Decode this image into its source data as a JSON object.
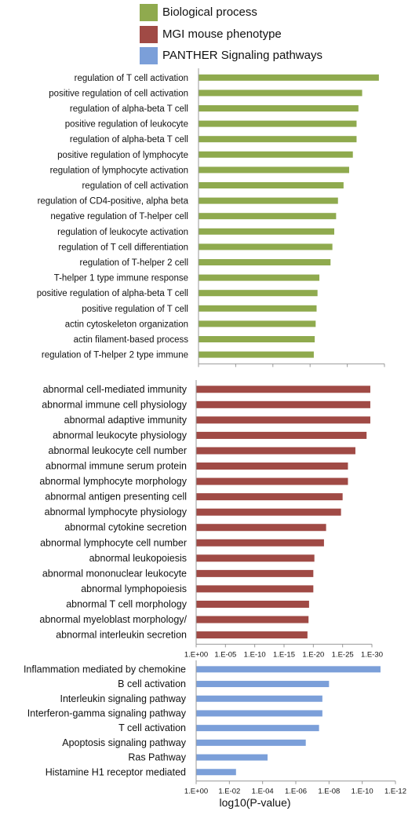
{
  "legend": [
    {
      "label": "Biological process",
      "color": "#8faa4e"
    },
    {
      "label": "MGI mouse phenotype",
      "color": "#a04a45"
    },
    {
      "label": "PANTHER Signaling pathways",
      "color": "#7b9fd9"
    }
  ],
  "xlabel": "log10(P-value)",
  "chart_data": [
    {
      "type": "bar",
      "orientation": "horizontal",
      "series": [
        {
          "name": "Biological process",
          "color": "#8faa4e"
        }
      ],
      "categories": [
        "regulation of T cell activation",
        "positive regulation of cell activation",
        "regulation of alpha-beta T cell",
        "positive regulation of leukocyte",
        "regulation of alpha-beta T cell",
        "positive regulation of lymphocyte",
        "regulation of lymphocyte activation",
        "regulation of cell activation",
        "regulation of CD4-positive, alpha beta",
        "negative regulation of T-helper cell",
        "regulation of leukocyte activation",
        "regulation of T cell differentiation",
        "regulation of T-helper 2 cell",
        "T-helper 1 type immune response",
        "positive regulation of alpha-beta T cell",
        "positive regulation of T cell",
        "actin cytoskeleton organization",
        "actin filament-based process",
        "regulation of T-helper 2 type immune"
      ],
      "values": [
        9.7,
        8.8,
        8.6,
        8.5,
        8.5,
        8.3,
        8.1,
        7.8,
        7.5,
        7.4,
        7.3,
        7.2,
        7.1,
        6.5,
        6.4,
        6.35,
        6.3,
        6.25,
        6.2
      ],
      "xlim": [
        0,
        10
      ],
      "xticks": [
        "1.E+00",
        "1.E-02",
        "1.E-04",
        "1.E-06",
        "1.E-08",
        "1.E-10"
      ],
      "xscale": "log (reversed, -log10 P)"
    },
    {
      "type": "bar",
      "orientation": "horizontal",
      "series": [
        {
          "name": "MGI mouse phenotype",
          "color": "#a04a45"
        }
      ],
      "categories": [
        "abnormal cell-mediated immunity",
        "abnormal immune cell physiology",
        "abnormal adaptive immunity",
        "abnormal leukocyte physiology",
        "abnormal leukocyte cell number",
        "abnormal immune serum protein",
        "abnormal lymphocyte morphology",
        "abnormal antigen presenting cell",
        "abnormal lymphocyte physiology",
        "abnormal cytokine secretion",
        "abnormal lymphocyte cell number",
        "abnormal leukopoiesis",
        "abnormal mononuclear leukocyte",
        "abnormal lymphopoiesis",
        "abnormal T cell morphology",
        "abnormal myeloblast morphology/",
        "abnormal interleukin secretion"
      ],
      "values": [
        32.7,
        32.7,
        32.7,
        32.0,
        29.9,
        28.5,
        28.5,
        27.5,
        27.2,
        24.4,
        24.0,
        22.2,
        22.0,
        22.0,
        21.2,
        21.1,
        20.9
      ],
      "xlim": [
        0,
        33
      ],
      "xticks": [
        "1.E+00",
        "1.E-05",
        "1.E-10",
        "1.E-15",
        "1.E-20",
        "1.E-25",
        "1.E-30"
      ],
      "xscale": "log (reversed, -log10 P)"
    },
    {
      "type": "bar",
      "orientation": "horizontal",
      "series": [
        {
          "name": "PANTHER Signaling pathways",
          "color": "#7b9fd9"
        }
      ],
      "categories": [
        "Inflammation mediated by chemokine",
        "B cell activation",
        "Interleukin signaling pathway",
        "Interferon-gamma signaling pathway",
        "T cell activation",
        "Apoptosis signaling pathway",
        "Ras Pathway",
        "Histamine H1 receptor mediated"
      ],
      "values": [
        11.1,
        8.0,
        7.6,
        7.6,
        7.4,
        6.6,
        4.3,
        2.4
      ],
      "xlim": [
        0,
        12
      ],
      "xticks": [
        "1.E+00",
        "1.E-02",
        "1.E-04",
        "1.E-06",
        "1.E-08",
        "1.E-10",
        "1.E-12"
      ],
      "xscale": "log (reversed, -log10 P)"
    }
  ]
}
